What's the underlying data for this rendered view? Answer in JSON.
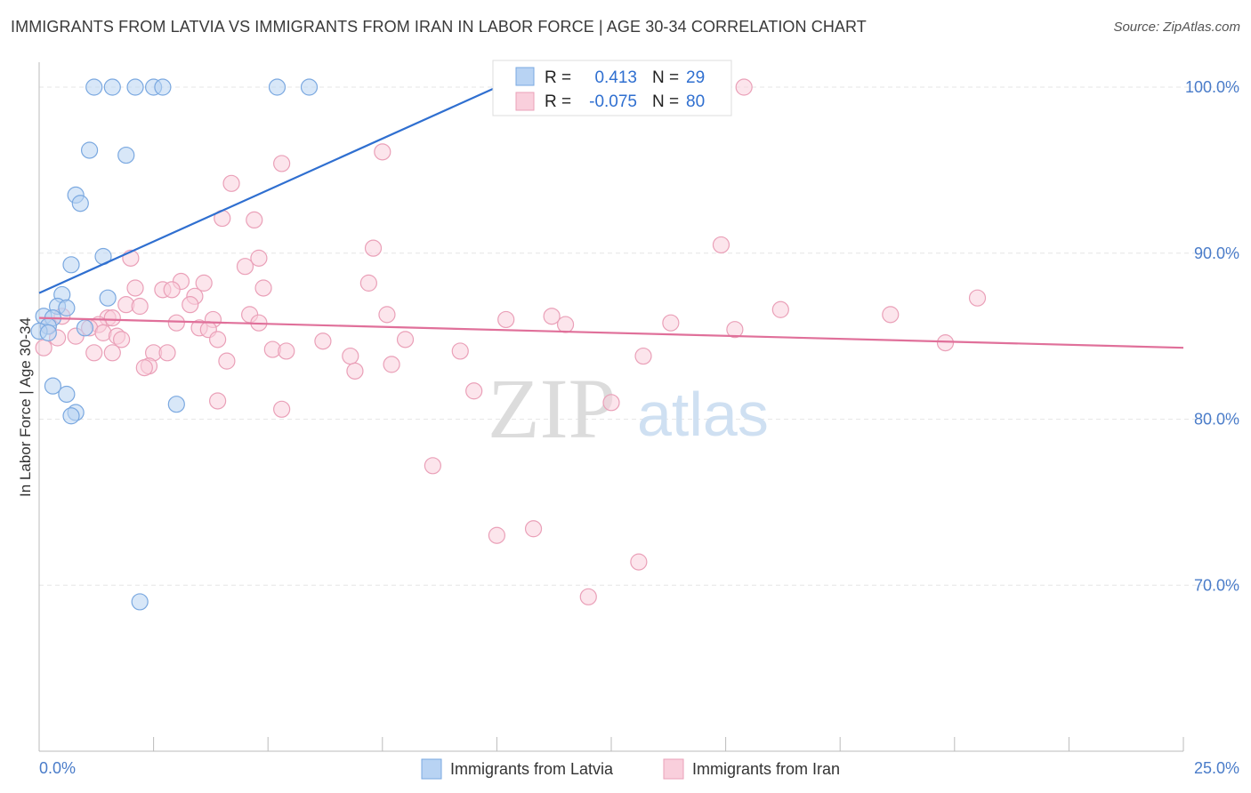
{
  "title": "IMMIGRANTS FROM LATVIA VS IMMIGRANTS FROM IRAN IN LABOR FORCE | AGE 30-34 CORRELATION CHART",
  "source": "Source: ZipAtlas.com",
  "watermark": {
    "zip": "ZIP",
    "atlas": "atlas"
  },
  "colors": {
    "latvia_fill": "#b8d3f3",
    "latvia_stroke": "#7aa8e0",
    "latvia_line": "#2f6fd0",
    "iran_fill": "#f9cfdc",
    "iran_stroke": "#eaa0b8",
    "iran_line": "#e0709a",
    "grid": "#e6e6e6",
    "tick_text": "#4a7cc9"
  },
  "legend": {
    "r_label": "R =",
    "n_label": "N =",
    "latvia": {
      "r": "0.413",
      "n": "29"
    },
    "iran": {
      "r": "-0.075",
      "n": "80"
    }
  },
  "bottom_legend": {
    "latvia": "Immigrants from Latvia",
    "iran": "Immigrants from Iran"
  },
  "chart_data": {
    "type": "scatter",
    "title": "IMMIGRANTS FROM LATVIA VS IMMIGRANTS FROM IRAN IN LABOR FORCE | AGE 30-34 CORRELATION CHART",
    "xlabel": "",
    "ylabel": "In Labor Force | Age 30-34",
    "xlim": [
      0,
      25
    ],
    "ylim": [
      60,
      101.5
    ],
    "x_tick_labels": [
      "0.0%",
      "25.0%"
    ],
    "y_ticks": [
      70,
      80,
      90,
      100
    ],
    "y_tick_labels": [
      "70.0%",
      "80.0%",
      "90.0%",
      "100.0%"
    ],
    "grid": true,
    "legend_position": "top-center",
    "series": [
      {
        "name": "Immigrants from Latvia",
        "trend": {
          "x": [
            0,
            10
          ],
          "y": [
            87.6,
            100
          ]
        },
        "points": [
          [
            1.2,
            100
          ],
          [
            1.6,
            100
          ],
          [
            2.1,
            100
          ],
          [
            2.5,
            100
          ],
          [
            2.7,
            100
          ],
          [
            5.2,
            100
          ],
          [
            5.9,
            100
          ],
          [
            1.1,
            96.2
          ],
          [
            1.9,
            95.9
          ],
          [
            0.8,
            93.5
          ],
          [
            0.9,
            93.0
          ],
          [
            1.4,
            89.8
          ],
          [
            0.7,
            89.3
          ],
          [
            0.5,
            87.5
          ],
          [
            1.5,
            87.3
          ],
          [
            0.4,
            86.8
          ],
          [
            0.6,
            86.7
          ],
          [
            0.1,
            86.2
          ],
          [
            0.3,
            86.1
          ],
          [
            0.2,
            85.6
          ],
          [
            1.0,
            85.5
          ],
          [
            0.0,
            85.3
          ],
          [
            0.2,
            85.2
          ],
          [
            0.3,
            82.0
          ],
          [
            0.6,
            81.5
          ],
          [
            3.0,
            80.9
          ],
          [
            0.8,
            80.4
          ],
          [
            0.7,
            80.2
          ],
          [
            2.2,
            69.0
          ]
        ]
      },
      {
        "name": "Immigrants from Iran",
        "trend": {
          "x": [
            0,
            25
          ],
          "y": [
            86.1,
            84.3
          ]
        },
        "points": [
          [
            11.1,
            100
          ],
          [
            15.4,
            100
          ],
          [
            7.5,
            96.1
          ],
          [
            5.3,
            95.4
          ],
          [
            4.2,
            94.2
          ],
          [
            4.0,
            92.1
          ],
          [
            4.7,
            92.0
          ],
          [
            14.9,
            90.5
          ],
          [
            7.3,
            90.3
          ],
          [
            2.0,
            89.7
          ],
          [
            4.8,
            89.7
          ],
          [
            4.5,
            89.2
          ],
          [
            3.1,
            88.3
          ],
          [
            3.6,
            88.2
          ],
          [
            7.2,
            88.2
          ],
          [
            2.1,
            87.9
          ],
          [
            4.9,
            87.9
          ],
          [
            2.7,
            87.8
          ],
          [
            2.9,
            87.8
          ],
          [
            3.4,
            87.4
          ],
          [
            20.5,
            87.3
          ],
          [
            3.3,
            86.9
          ],
          [
            1.9,
            86.9
          ],
          [
            2.2,
            86.8
          ],
          [
            16.2,
            86.6
          ],
          [
            18.6,
            86.3
          ],
          [
            0.5,
            86.2
          ],
          [
            4.6,
            86.3
          ],
          [
            7.6,
            86.3
          ],
          [
            11.2,
            86.2
          ],
          [
            1.5,
            86.1
          ],
          [
            1.6,
            86.1
          ],
          [
            3.8,
            86.0
          ],
          [
            10.2,
            86.0
          ],
          [
            11.5,
            85.7
          ],
          [
            13.8,
            85.8
          ],
          [
            3.0,
            85.8
          ],
          [
            4.8,
            85.8
          ],
          [
            1.3,
            85.7
          ],
          [
            0.2,
            85.6
          ],
          [
            1.1,
            85.5
          ],
          [
            3.5,
            85.5
          ],
          [
            15.2,
            85.4
          ],
          [
            3.7,
            85.4
          ],
          [
            1.4,
            85.2
          ],
          [
            0.8,
            85.0
          ],
          [
            0.4,
            84.9
          ],
          [
            1.7,
            85.0
          ],
          [
            1.8,
            84.8
          ],
          [
            3.9,
            84.8
          ],
          [
            6.2,
            84.7
          ],
          [
            8.0,
            84.8
          ],
          [
            19.8,
            84.6
          ],
          [
            0.1,
            84.3
          ],
          [
            5.1,
            84.2
          ],
          [
            5.4,
            84.1
          ],
          [
            9.2,
            84.1
          ],
          [
            2.5,
            84.0
          ],
          [
            2.8,
            84.0
          ],
          [
            1.2,
            84.0
          ],
          [
            1.6,
            84.0
          ],
          [
            6.8,
            83.8
          ],
          [
            13.2,
            83.8
          ],
          [
            4.1,
            83.5
          ],
          [
            7.7,
            83.3
          ],
          [
            2.4,
            83.2
          ],
          [
            2.3,
            83.1
          ],
          [
            6.9,
            82.9
          ],
          [
            9.5,
            81.7
          ],
          [
            3.9,
            81.1
          ],
          [
            12.5,
            81.0
          ],
          [
            5.3,
            80.6
          ],
          [
            8.6,
            77.2
          ],
          [
            10.0,
            73.0
          ],
          [
            10.8,
            73.4
          ],
          [
            13.1,
            71.4
          ],
          [
            12.0,
            69.3
          ]
        ]
      }
    ]
  }
}
